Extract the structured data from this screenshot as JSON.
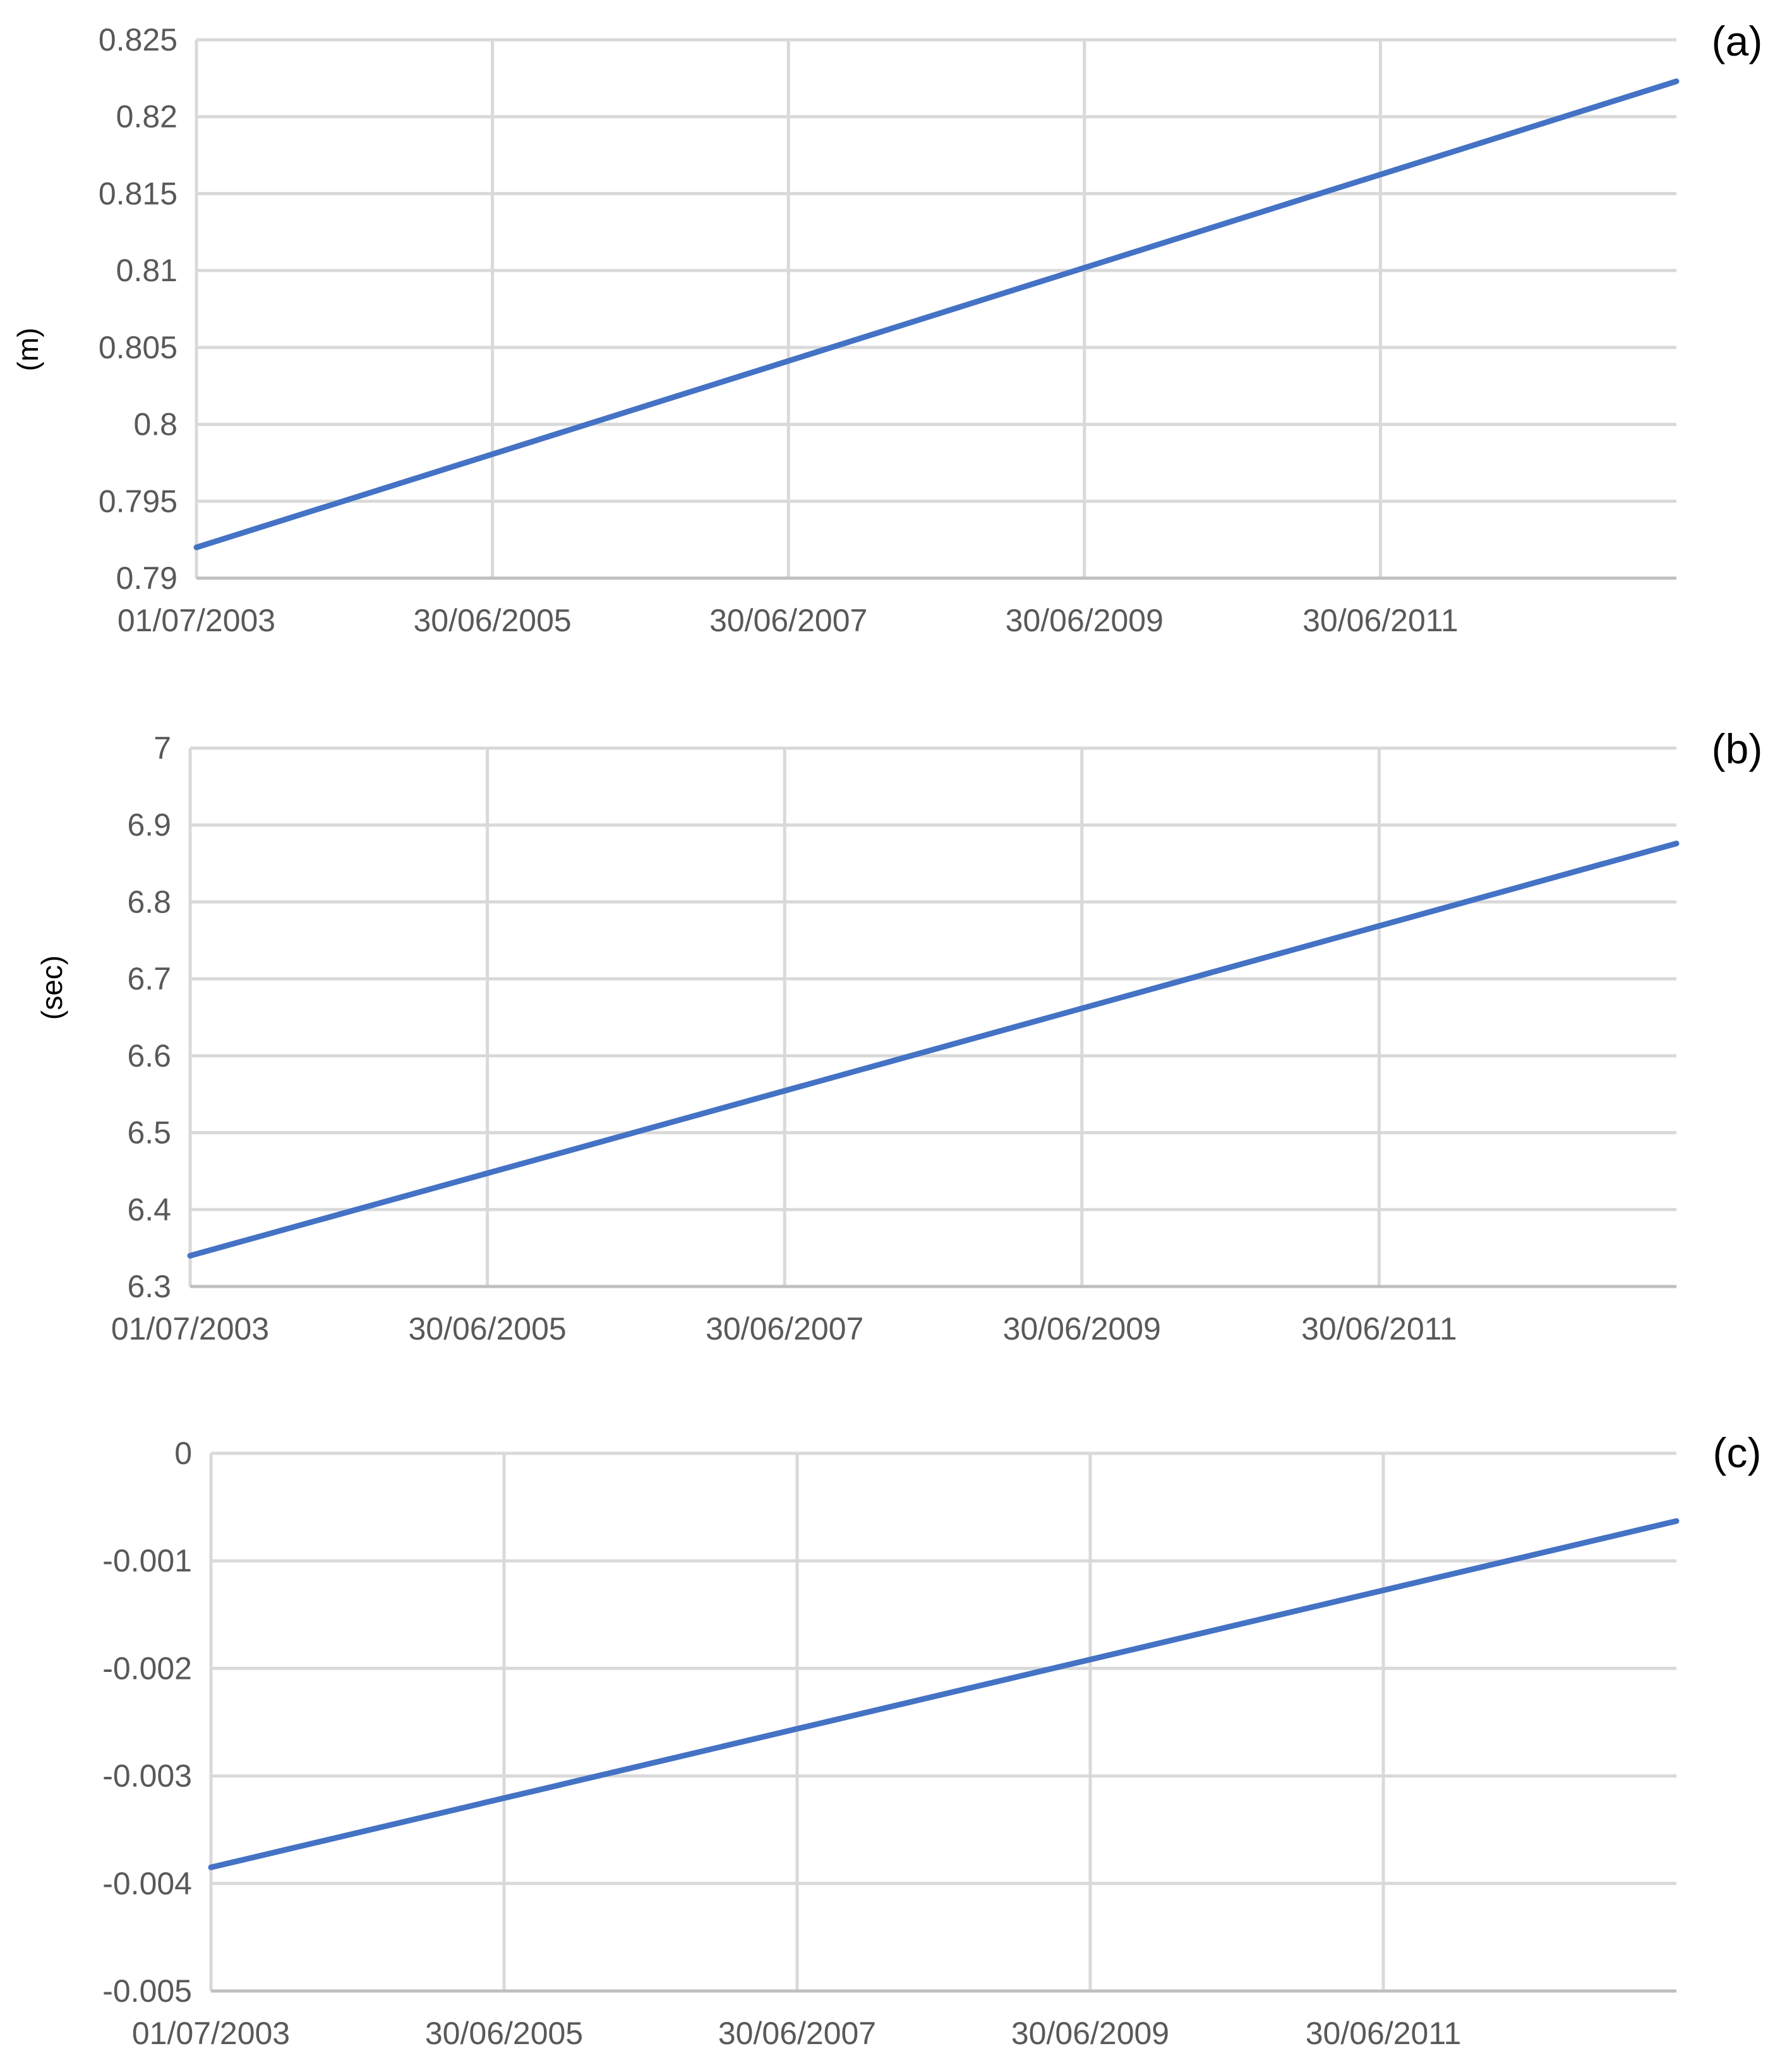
{
  "chart_data": [
    {
      "type": "line",
      "panel_label": "(a)",
      "ylabel": "(m)",
      "xlabel": "",
      "x_tick_labels": [
        "01/07/2003",
        "30/06/2005",
        "30/06/2007",
        "30/06/2009",
        "30/06/2011"
      ],
      "y_tick_labels": [
        "0.79",
        "0.795",
        "0.8",
        "0.805",
        "0.81",
        "0.815",
        "0.82",
        "0.825"
      ],
      "ylim": [
        0.79,
        0.825
      ],
      "xlim": [
        "2003-07-01",
        "2013-06-30"
      ],
      "grid": true,
      "series": [
        {
          "x": [
            "2003-07-01",
            "2013-06-30"
          ],
          "y": [
            0.792,
            0.8223
          ]
        }
      ],
      "color": "#4472c4"
    },
    {
      "type": "line",
      "panel_label": "(b)",
      "ylabel": "(sec)",
      "xlabel": "",
      "x_tick_labels": [
        "01/07/2003",
        "30/06/2005",
        "30/06/2007",
        "30/06/2009",
        "30/06/2011"
      ],
      "y_tick_labels": [
        "6.3",
        "6.4",
        "6.5",
        "6.6",
        "6.7",
        "6.8",
        "6.9",
        "7"
      ],
      "ylim": [
        6.3,
        7.0
      ],
      "xlim": [
        "2003-07-01",
        "2013-06-30"
      ],
      "grid": true,
      "series": [
        {
          "x": [
            "2003-07-01",
            "2013-06-30"
          ],
          "y": [
            6.34,
            6.876
          ]
        }
      ],
      "color": "#4472c4"
    },
    {
      "type": "line",
      "panel_label": "(c)",
      "ylabel": "",
      "xlabel": "",
      "x_tick_labels": [
        "01/07/2003",
        "30/06/2005",
        "30/06/2007",
        "30/06/2009",
        "30/06/2011"
      ],
      "y_tick_labels": [
        "-0.005",
        "-0.004",
        "-0.003",
        "-0.002",
        "-0.001",
        "0"
      ],
      "ylim": [
        -0.005,
        0.0
      ],
      "xlim": [
        "2003-07-01",
        "2013-06-30"
      ],
      "grid": true,
      "series": [
        {
          "x": [
            "2003-07-01",
            "2013-06-30"
          ],
          "y": [
            -0.00385,
            -0.00063
          ]
        }
      ],
      "color": "#4472c4"
    }
  ]
}
